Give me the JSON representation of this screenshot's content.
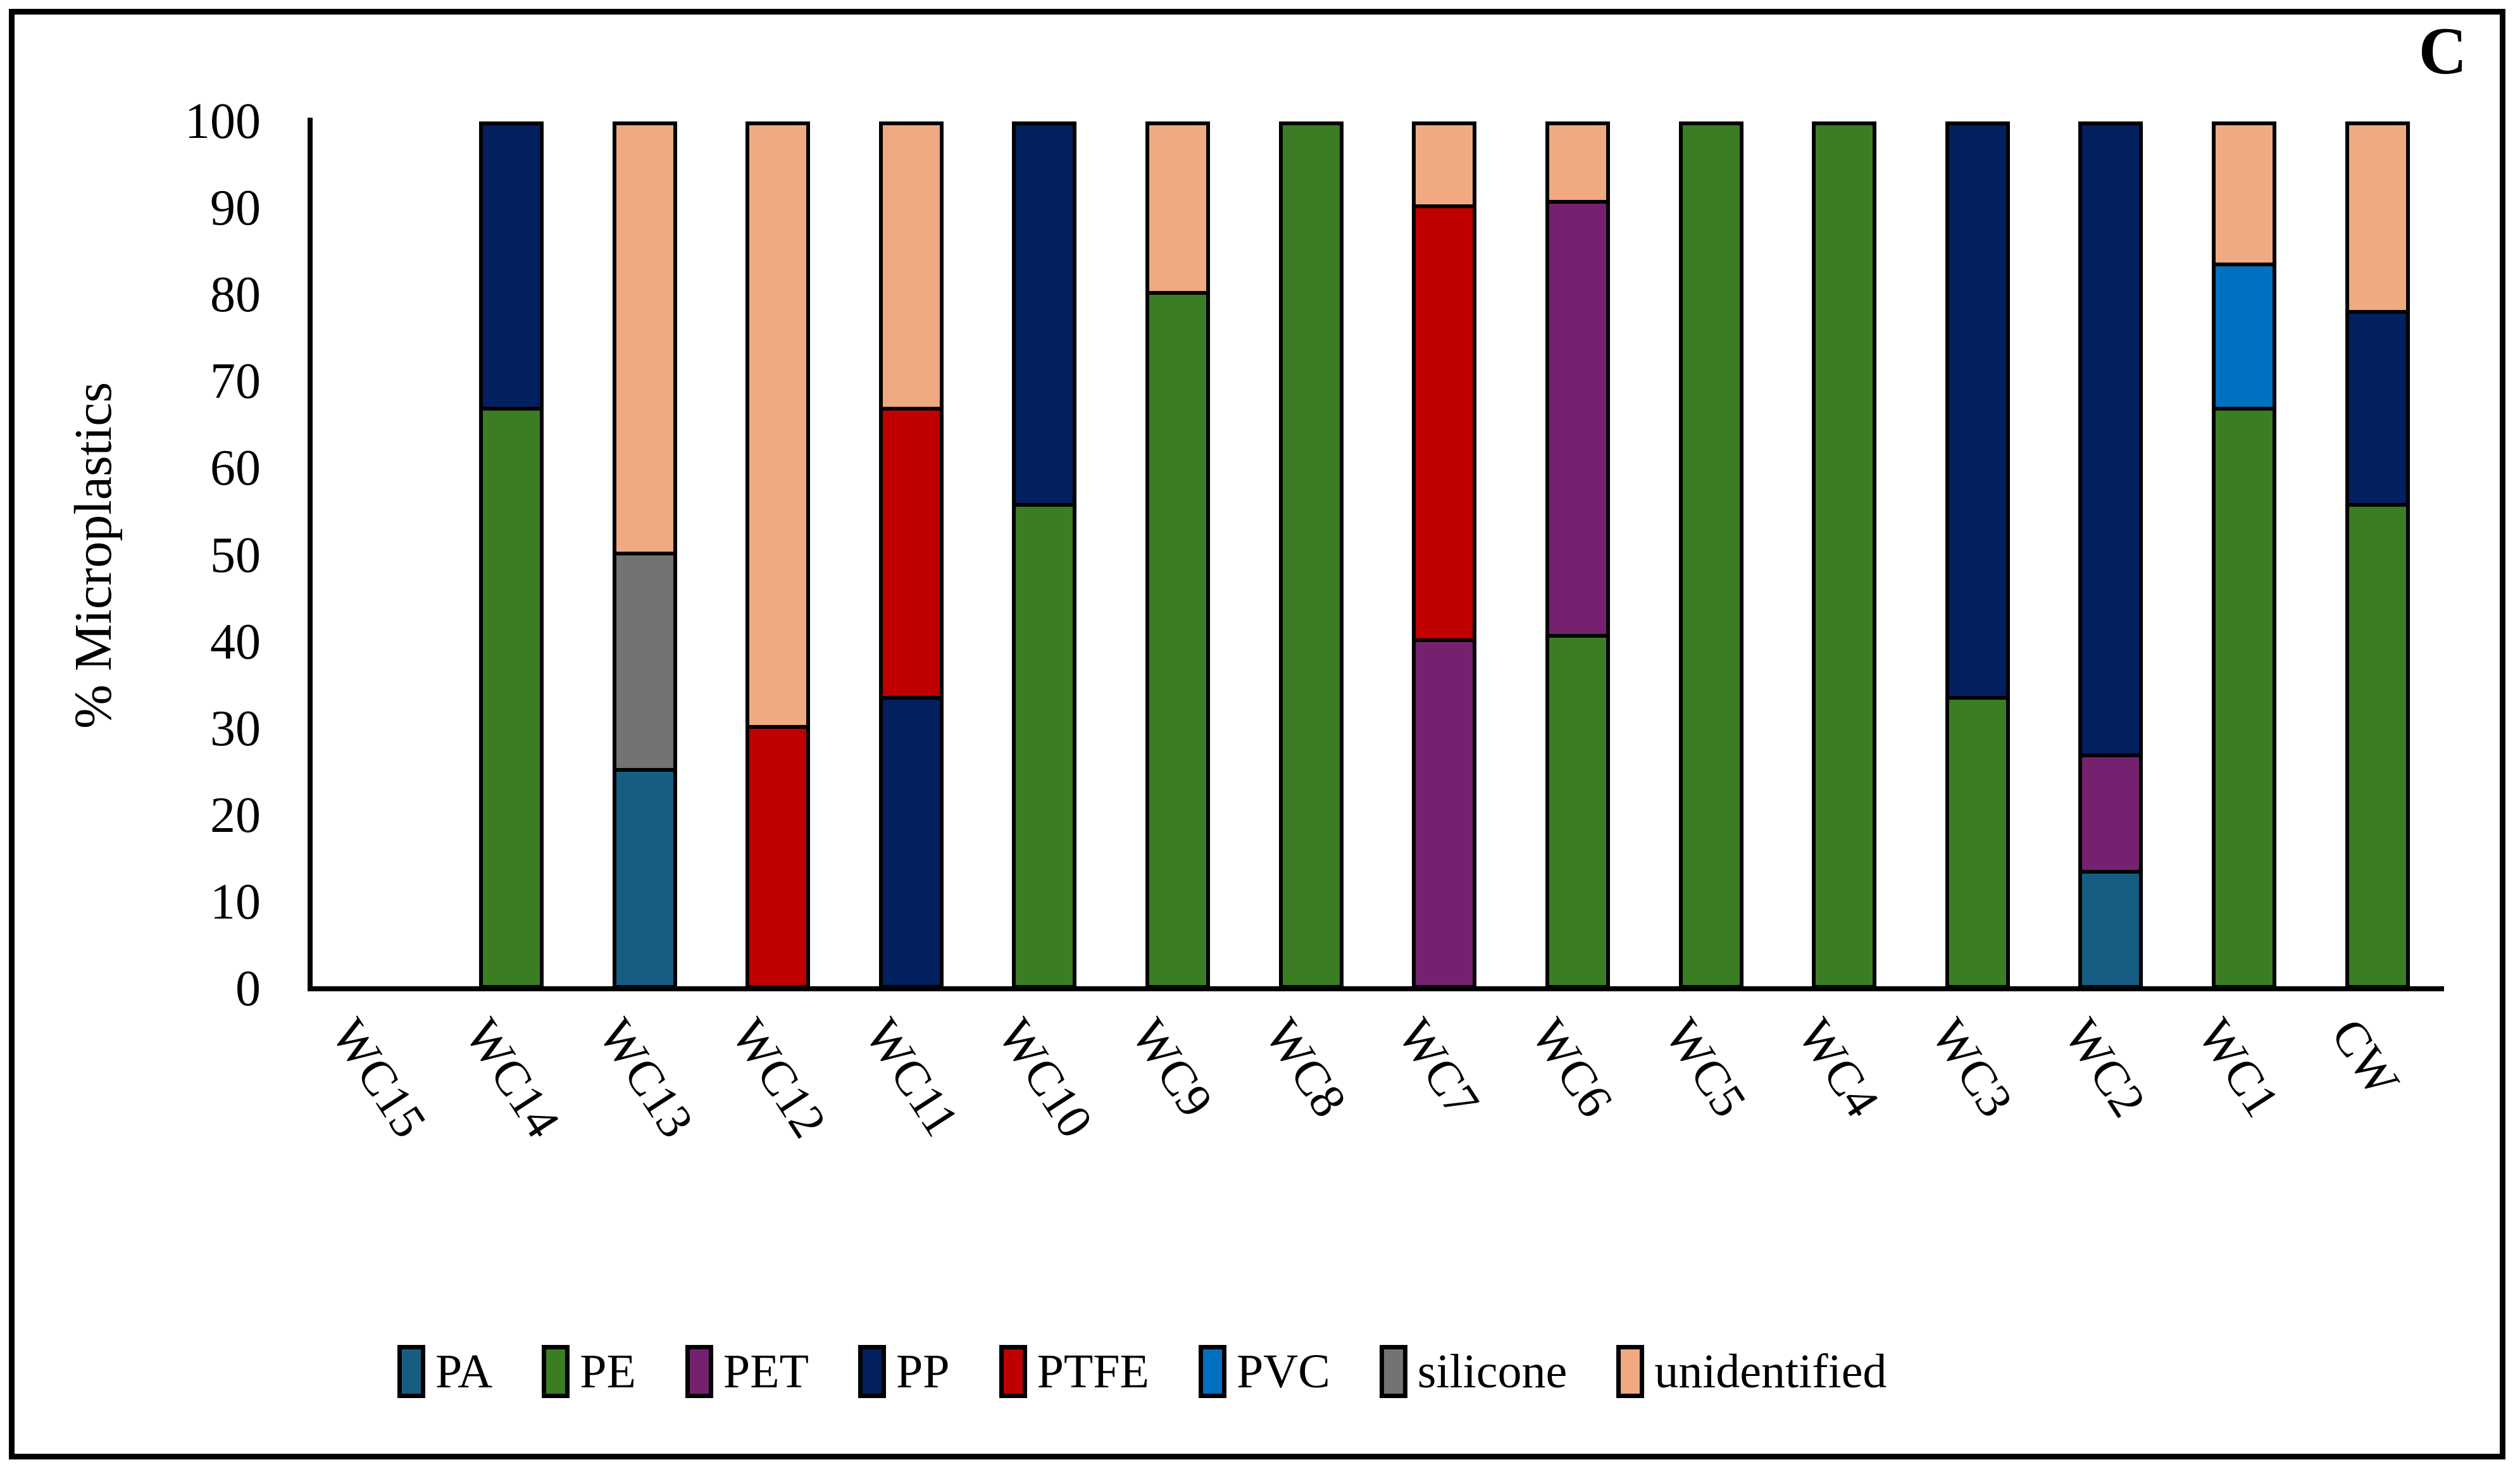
{
  "chart_data": {
    "type": "bar",
    "stacked": true,
    "orientation": "vertical",
    "corner_label": "C",
    "ylabel": "% Microplastics",
    "ylim": [
      0,
      100
    ],
    "yticks": [
      0,
      10,
      20,
      30,
      40,
      50,
      60,
      70,
      80,
      90,
      100
    ],
    "grid": false,
    "legend_position": "bottom",
    "categories": [
      "WC15",
      "WC14",
      "WC13",
      "WC12",
      "WC11",
      "WC10",
      "WC9",
      "WC8",
      "WC7",
      "WC6",
      "WC5",
      "WC4",
      "WC3",
      "WC2",
      "WC1",
      "CW"
    ],
    "series": [
      {
        "name": "PA",
        "color": "#155E82",
        "values": [
          0,
          0,
          25,
          0,
          0,
          0,
          0,
          0,
          0,
          0,
          0,
          0,
          0,
          13.3,
          0,
          0
        ]
      },
      {
        "name": "PE",
        "color": "#3A7D22",
        "values": [
          0,
          66.7,
          0,
          0,
          0,
          55.6,
          80,
          100,
          0,
          40.5,
          100,
          100,
          33.3,
          0,
          66.7,
          55.6
        ]
      },
      {
        "name": "PET",
        "color": "#752170",
        "values": [
          0,
          0,
          0,
          0,
          0,
          0,
          0,
          0,
          40,
          50,
          0,
          0,
          0,
          13.4,
          0,
          0
        ]
      },
      {
        "name": "PP",
        "color": "#02205F",
        "values": [
          0,
          33.3,
          0,
          0,
          33.3,
          44.4,
          0,
          0,
          0,
          0,
          0,
          0,
          66.7,
          73.3,
          0,
          22.2
        ]
      },
      {
        "name": "PTFE",
        "color": "#C00000",
        "values": [
          0,
          0,
          0,
          30,
          33.4,
          0,
          0,
          0,
          50,
          0,
          0,
          0,
          0,
          0,
          0,
          0
        ]
      },
      {
        "name": "PVC",
        "color": "#0070C0",
        "values": [
          0,
          0,
          0,
          0,
          0,
          0,
          0,
          0,
          0,
          0,
          0,
          0,
          0,
          0,
          16.6,
          0
        ]
      },
      {
        "name": "silicone",
        "color": "#737373",
        "values": [
          0,
          0,
          25,
          0,
          0,
          0,
          0,
          0,
          0,
          0,
          0,
          0,
          0,
          0,
          0,
          0
        ]
      },
      {
        "name": "unidentified",
        "color": "#F1A981",
        "values": [
          0,
          0,
          50,
          70,
          33.3,
          0,
          20,
          0,
          10,
          9.5,
          0,
          0,
          0,
          0,
          16.7,
          22.2
        ]
      }
    ]
  }
}
